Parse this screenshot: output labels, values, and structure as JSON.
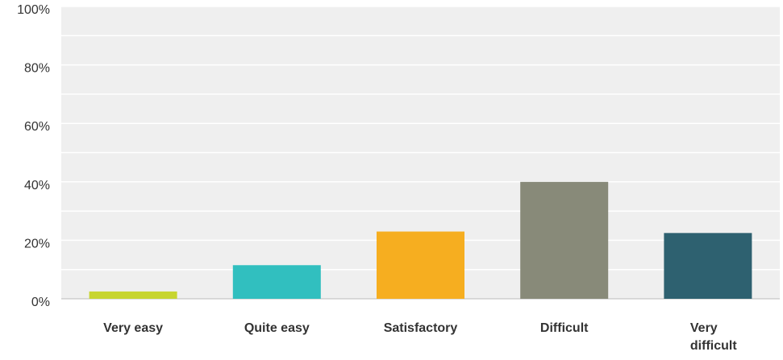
{
  "chart_data": {
    "type": "bar",
    "title": "",
    "xlabel": "",
    "ylabel": "",
    "categories": [
      "Very easy",
      "Quite easy",
      "Satisfactory",
      "Difficult",
      "Very difficult"
    ],
    "values": [
      2.5,
      11.5,
      23,
      40,
      22.5
    ],
    "ylim": [
      0,
      100
    ],
    "y_unit": "percent",
    "yticks": [
      "0%",
      "20%",
      "40%",
      "60%",
      "80%",
      "100%"
    ],
    "grid": true,
    "legend": "none",
    "colors": [
      "#c7d530",
      "#31bfbf",
      "#f6ae20",
      "#888a79",
      "#2e6170"
    ],
    "background": "#efefef",
    "gridline_color": "#ffffff"
  }
}
